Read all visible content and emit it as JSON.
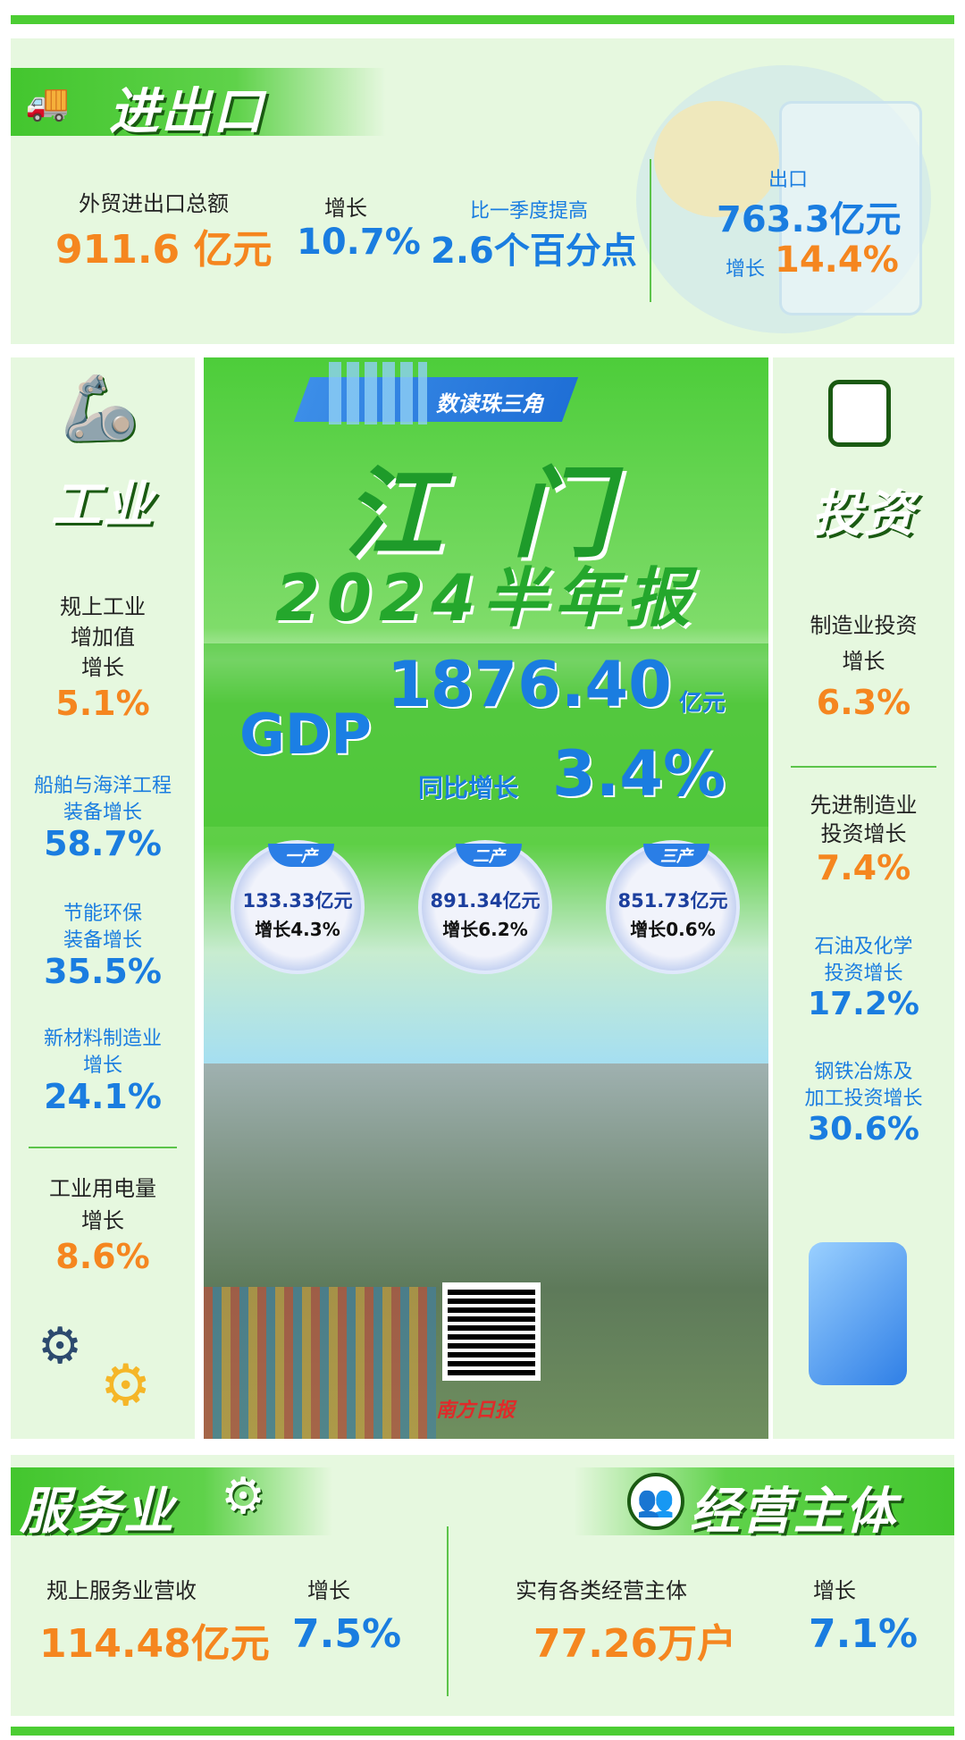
{
  "trade": {
    "title": "进出口",
    "total_label": "外贸进出口总额",
    "total_value": "911.6",
    "total_unit": "亿元",
    "growth_label": "增长",
    "growth_value": "10.7%",
    "q1_label": "比一季度提高",
    "q1_value": "2.6",
    "q1_unit": "个百分点",
    "export_label": "出口",
    "export_value": "763.3亿元",
    "export_growth_label": "增长",
    "export_growth_value": "14.4%"
  },
  "industry": {
    "title": "工业",
    "items": [
      {
        "label1": "规上工业",
        "label2": "增加值",
        "label3": "增长",
        "value": "5.1%"
      },
      {
        "label1": "船舶与海洋工程",
        "label2": "装备增长",
        "value": "58.7%"
      },
      {
        "label1": "节能环保",
        "label2": "装备增长",
        "value": "35.5%"
      },
      {
        "label1": "新材料制造业",
        "label2": "增长",
        "value": "24.1%"
      },
      {
        "label1": "工业用电量",
        "label2": "增长",
        "value": "8.6%"
      }
    ]
  },
  "center": {
    "banner": "数读珠三角",
    "city": "江 门",
    "subtitle": "2024半年报",
    "gdp_label": "GDP",
    "gdp_value": "1876.40",
    "gdp_unit": "亿元",
    "gdp_growth_label": "同比增长",
    "gdp_growth_value": "3.4%",
    "sectors": [
      {
        "tag": "一产",
        "value": "133.33亿元",
        "growth": "增长4.3%"
      },
      {
        "tag": "二产",
        "value": "891.34亿元",
        "growth": "增长6.2%"
      },
      {
        "tag": "三产",
        "value": "851.73亿元",
        "growth": "增长0.6%"
      }
    ],
    "logo": "南方日报"
  },
  "investment": {
    "title": "投资",
    "items": [
      {
        "label1": "制造业投资",
        "label2": "增长",
        "value": "6.3%"
      },
      {
        "label1": "先进制造业",
        "label2": "投资增长",
        "value": "7.4%"
      },
      {
        "label1": "石油及化学",
        "label2": "投资增长",
        "value": "17.2%"
      },
      {
        "label1": "钢铁冶炼及",
        "label2": "加工投资增长",
        "value": "30.6%"
      }
    ]
  },
  "services": {
    "title": "服务业",
    "label": "规上服务业营收",
    "value": "114.48亿元",
    "growth_label": "增长",
    "growth_value": "7.5%"
  },
  "entities": {
    "title": "经营主体",
    "label": "实有各类经营主体",
    "value": "77.26万户",
    "growth_label": "增长",
    "growth_value": "7.1%"
  },
  "colors": {
    "green": "#4ccd33",
    "orange": "#f5861f",
    "blue": "#1a7de0",
    "panel": "#e6f8df"
  }
}
